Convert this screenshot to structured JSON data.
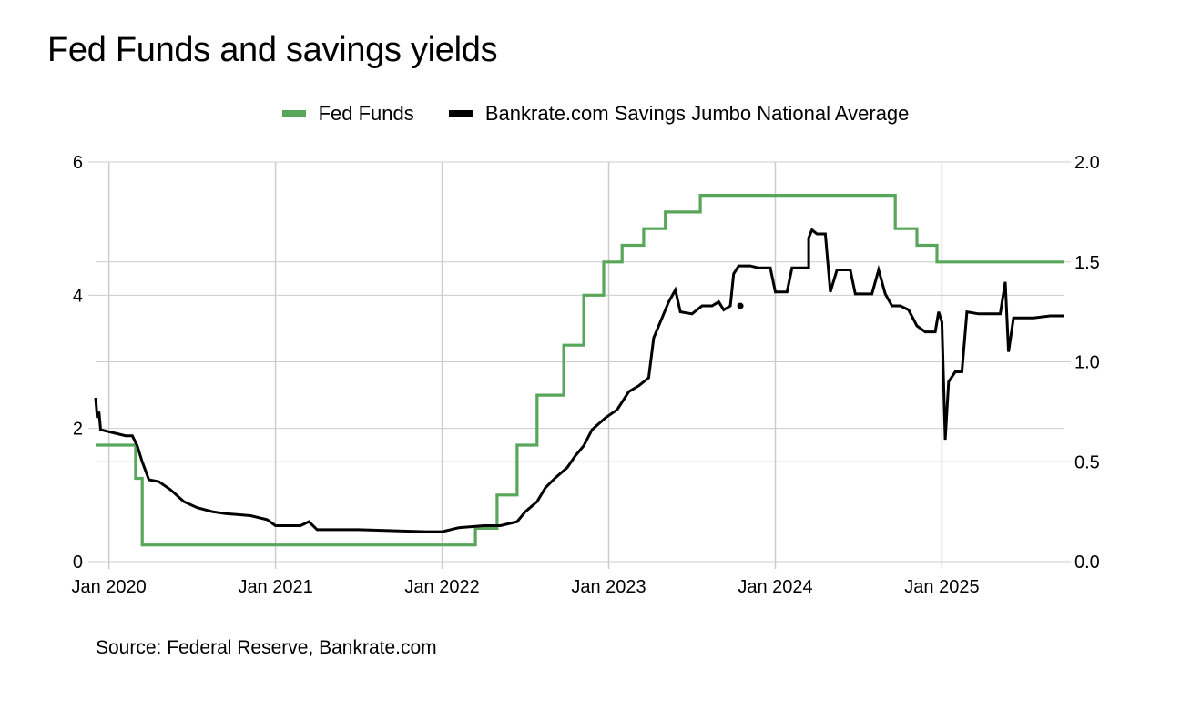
{
  "title": "Fed Funds and savings yields",
  "source": "Source: Federal Reserve, Bankrate.com",
  "colors": {
    "fed": "#57a65a",
    "savings": "#000000",
    "grid": "#cccccc"
  },
  "chart_data": {
    "type": "line",
    "title": "Fed Funds and savings yields",
    "legend_position": "top-center",
    "x_axis": {
      "range": [
        2019.92,
        2025.73
      ],
      "ticks": [
        {
          "label": "Jan 2020",
          "value": 2020.0
        },
        {
          "label": "Jan 2021",
          "value": 2021.0
        },
        {
          "label": "Jan 2022",
          "value": 2022.0
        },
        {
          "label": "Jan 2023",
          "value": 2023.0
        },
        {
          "label": "Jan 2024",
          "value": 2024.0
        },
        {
          "label": "Jan 2025",
          "value": 2025.0
        }
      ]
    },
    "y_left": {
      "range": [
        0,
        6
      ],
      "ticks": [
        "0",
        "2",
        "4",
        "6"
      ],
      "tick_values": [
        0,
        2,
        4,
        6
      ]
    },
    "y_right": {
      "range": [
        0,
        2
      ],
      "ticks": [
        "0.0",
        "0.5",
        "1.0",
        "1.5",
        "2.0"
      ],
      "tick_values": [
        0,
        0.5,
        1,
        1.5,
        2
      ]
    },
    "series": [
      {
        "name": "Fed Funds",
        "axis": "left",
        "color": "#57a65a",
        "points": [
          [
            2019.92,
            1.75
          ],
          [
            2020.16,
            1.75
          ],
          [
            2020.16,
            1.25
          ],
          [
            2020.2,
            1.25
          ],
          [
            2020.2,
            0.25
          ],
          [
            2022.2,
            0.25
          ],
          [
            2022.2,
            0.5
          ],
          [
            2022.33,
            0.5
          ],
          [
            2022.33,
            1.0
          ],
          [
            2022.45,
            1.0
          ],
          [
            2022.45,
            1.75
          ],
          [
            2022.57,
            1.75
          ],
          [
            2022.57,
            2.5
          ],
          [
            2022.73,
            2.5
          ],
          [
            2022.73,
            3.25
          ],
          [
            2022.85,
            3.25
          ],
          [
            2022.85,
            4.0
          ],
          [
            2022.97,
            4.0
          ],
          [
            2022.97,
            4.5
          ],
          [
            2023.08,
            4.5
          ],
          [
            2023.08,
            4.75
          ],
          [
            2023.21,
            4.75
          ],
          [
            2023.21,
            5.0
          ],
          [
            2023.34,
            5.0
          ],
          [
            2023.34,
            5.25
          ],
          [
            2023.55,
            5.25
          ],
          [
            2023.55,
            5.5
          ],
          [
            2024.72,
            5.5
          ],
          [
            2024.72,
            5.0
          ],
          [
            2024.85,
            5.0
          ],
          [
            2024.85,
            4.75
          ],
          [
            2024.97,
            4.75
          ],
          [
            2024.97,
            4.5
          ],
          [
            2025.73,
            4.5
          ]
        ]
      },
      {
        "name": "Bankrate.com Savings Jumbo National Average",
        "axis": "right",
        "color": "#000000",
        "points": [
          [
            2019.92,
            0.82
          ],
          [
            2019.93,
            0.72
          ],
          [
            2019.94,
            0.75
          ],
          [
            2019.95,
            0.66
          ],
          [
            2020.0,
            0.65
          ],
          [
            2020.05,
            0.64
          ],
          [
            2020.1,
            0.63
          ],
          [
            2020.14,
            0.63
          ],
          [
            2020.17,
            0.58
          ],
          [
            2020.2,
            0.5
          ],
          [
            2020.24,
            0.41
          ],
          [
            2020.3,
            0.4
          ],
          [
            2020.37,
            0.36
          ],
          [
            2020.45,
            0.3
          ],
          [
            2020.53,
            0.27
          ],
          [
            2020.62,
            0.25
          ],
          [
            2020.7,
            0.24
          ],
          [
            2020.85,
            0.23
          ],
          [
            2020.95,
            0.21
          ],
          [
            2021.0,
            0.18
          ],
          [
            2021.15,
            0.18
          ],
          [
            2021.2,
            0.2
          ],
          [
            2021.25,
            0.16
          ],
          [
            2021.5,
            0.16
          ],
          [
            2021.7,
            0.155
          ],
          [
            2021.9,
            0.15
          ],
          [
            2022.0,
            0.15
          ],
          [
            2022.1,
            0.17
          ],
          [
            2022.25,
            0.18
          ],
          [
            2022.35,
            0.18
          ],
          [
            2022.45,
            0.2
          ],
          [
            2022.5,
            0.25
          ],
          [
            2022.57,
            0.3
          ],
          [
            2022.62,
            0.37
          ],
          [
            2022.68,
            0.42
          ],
          [
            2022.75,
            0.47
          ],
          [
            2022.8,
            0.53
          ],
          [
            2022.85,
            0.58
          ],
          [
            2022.9,
            0.66
          ],
          [
            2022.98,
            0.72
          ],
          [
            2023.05,
            0.76
          ],
          [
            2023.12,
            0.85
          ],
          [
            2023.18,
            0.88
          ],
          [
            2023.24,
            0.92
          ],
          [
            2023.27,
            1.12
          ],
          [
            2023.32,
            1.22
          ],
          [
            2023.36,
            1.3
          ],
          [
            2023.4,
            1.36
          ],
          [
            2023.43,
            1.25
          ],
          [
            2023.5,
            1.24
          ],
          [
            2023.56,
            1.28
          ],
          [
            2023.62,
            1.28
          ],
          [
            2023.66,
            1.3
          ],
          [
            2023.69,
            1.26
          ],
          [
            2023.73,
            1.28
          ],
          [
            2023.75,
            1.44
          ],
          [
            2023.78,
            1.48
          ],
          [
            2023.85,
            1.48
          ],
          [
            2023.9,
            1.47
          ],
          [
            2023.97,
            1.47
          ],
          [
            2024.0,
            1.35
          ],
          [
            2024.07,
            1.35
          ],
          [
            2024.1,
            1.47
          ],
          [
            2024.2,
            1.47
          ],
          [
            2024.2,
            1.62
          ],
          [
            2024.22,
            1.66
          ],
          [
            2024.25,
            1.64
          ],
          [
            2024.3,
            1.64
          ],
          [
            2024.33,
            1.35
          ],
          [
            2024.37,
            1.46
          ],
          [
            2024.45,
            1.46
          ],
          [
            2024.48,
            1.34
          ],
          [
            2024.58,
            1.34
          ],
          [
            2024.62,
            1.46
          ],
          [
            2024.66,
            1.34
          ],
          [
            2024.7,
            1.28
          ],
          [
            2024.75,
            1.28
          ],
          [
            2024.8,
            1.26
          ],
          [
            2024.85,
            1.18
          ],
          [
            2024.9,
            1.15
          ],
          [
            2024.96,
            1.15
          ],
          [
            2024.98,
            1.25
          ],
          [
            2025.0,
            1.2
          ],
          [
            2025.02,
            0.61
          ],
          [
            2025.04,
            0.9
          ],
          [
            2025.08,
            0.95
          ],
          [
            2025.12,
            0.95
          ],
          [
            2025.15,
            1.25
          ],
          [
            2025.22,
            1.24
          ],
          [
            2025.35,
            1.24
          ],
          [
            2025.38,
            1.4
          ],
          [
            2025.4,
            1.05
          ],
          [
            2025.43,
            1.22
          ],
          [
            2025.55,
            1.22
          ],
          [
            2025.65,
            1.23
          ],
          [
            2025.73,
            1.23
          ]
        ],
        "isolated_points": [
          [
            2023.79,
            1.28
          ]
        ]
      }
    ]
  }
}
